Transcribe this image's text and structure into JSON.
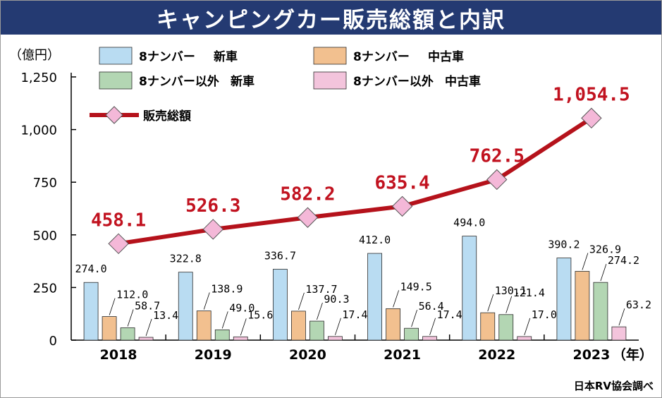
{
  "title": "キャンピングカー販売総額と内訳",
  "source": "日本RV協会調べ",
  "colors": {
    "banner": "#243a72",
    "total_line": "#b5121b",
    "total_marker": "#f4b8d8",
    "total_label": "#c1121f"
  },
  "chart_data": {
    "type": "bar",
    "unit_label": "（億円）",
    "year_suffix": "（年）",
    "categories": [
      "2018",
      "2019",
      "2020",
      "2021",
      "2022",
      "2023"
    ],
    "ylim": [
      0,
      1250
    ],
    "yticks": [
      0,
      250,
      500,
      750,
      1000,
      1250
    ],
    "ytick_labels": [
      "0",
      "250",
      "500",
      "750",
      "1,000",
      "1,250"
    ],
    "series": [
      {
        "name": "8ナンバー 新車",
        "color": "#b9dcf2",
        "values": [
          274.0,
          322.8,
          336.7,
          412.0,
          494.0,
          390.2
        ],
        "labels": [
          "274.0",
          "322.8",
          "336.7",
          "412.0",
          "494.0",
          "390.2"
        ]
      },
      {
        "name": "8ナンバー 中古車",
        "color": "#f2c08f",
        "values": [
          112.0,
          138.9,
          137.7,
          149.5,
          130.1,
          326.9
        ],
        "labels": [
          "112.0",
          "138.9",
          "137.7",
          "149.5",
          "130.1",
          "326.9"
        ]
      },
      {
        "name": "8ナンバー以外 新車",
        "color": "#b3d6b3",
        "values": [
          58.7,
          49.0,
          90.3,
          56.4,
          121.4,
          274.2
        ],
        "labels": [
          "58.7",
          "49.0",
          "90.3",
          "56.4",
          "121.4",
          "274.2"
        ]
      },
      {
        "name": "8ナンバー以外 中古車",
        "color": "#f3c4dc",
        "values": [
          13.4,
          15.6,
          17.4,
          17.4,
          17.0,
          63.2
        ],
        "labels": [
          "13.4",
          "15.6",
          "17.4",
          "17.4",
          "17.0",
          "63.2"
        ]
      }
    ],
    "line": {
      "name": "販売総額",
      "values": [
        458.1,
        526.3,
        582.2,
        635.4,
        762.5,
        1054.5
      ],
      "labels": [
        "458.1",
        "526.3",
        "582.2",
        "635.4",
        "762.5",
        "1,054.5"
      ]
    },
    "legend": {
      "bar_items": [
        {
          "line1": "8ナンバー",
          "line2": "新車"
        },
        {
          "line1": "8ナンバー",
          "line2": "中古車"
        },
        {
          "line1": "8ナンバー以外",
          "line2": "新車"
        },
        {
          "line1": "8ナンバー以外",
          "line2": "中古車"
        }
      ],
      "line_item": "販売総額",
      "placement": "top-left"
    },
    "grid": false
  }
}
